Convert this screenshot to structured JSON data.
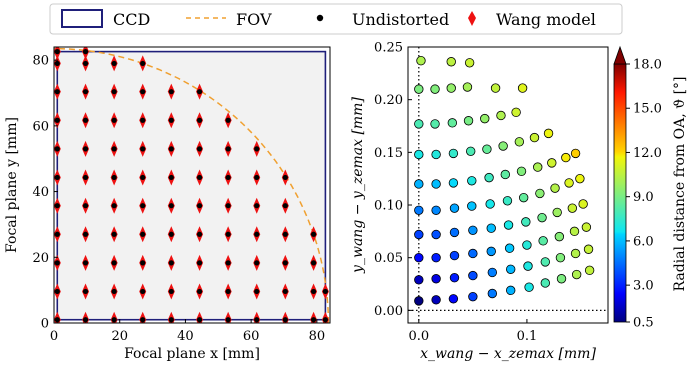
{
  "legend": {
    "entries": [
      {
        "label": "CCD",
        "symbol": "rect",
        "color": "#1f1f7a"
      },
      {
        "label": "FOV",
        "symbol": "dashed-line",
        "color": "#f0a030"
      },
      {
        "label": "Undistorted",
        "symbol": "dot",
        "color": "#000000"
      },
      {
        "label": "Wang model",
        "symbol": "diamond",
        "color": "#ee1111"
      }
    ]
  },
  "chart_data": [
    {
      "type": "scatter",
      "xlabel": "Focal plane x [mm]",
      "ylabel": "Focal plane y [mm]",
      "xlim": [
        0,
        84
      ],
      "ylim": [
        0,
        84
      ],
      "xticks": [
        "0",
        "20",
        "40",
        "60",
        "80"
      ],
      "yticks": [
        "0",
        "20",
        "40",
        "60",
        "80"
      ],
      "ccd_extent": [
        1,
        82.6
      ],
      "fov_radius": 83.5,
      "grid_x": [
        1,
        9.6,
        18.3,
        27,
        35.7,
        44.3,
        53,
        61.7,
        70.4,
        79,
        82.6
      ],
      "grid_y": [
        1,
        9.6,
        18.3,
        27,
        35.7,
        44.3,
        53,
        61.7,
        70.4,
        79,
        82.6
      ],
      "series": [
        {
          "name": "Undistorted",
          "color": "#000000",
          "marker": "dot"
        },
        {
          "name": "Wang model",
          "color": "#ee1111",
          "marker": "diamond"
        }
      ],
      "colors": {
        "ccd": "#1f1f7a",
        "fov": "#f0a030",
        "ccd_fill": "#f2f2f2"
      }
    },
    {
      "type": "scatter",
      "xlabel": "x_wang − x_zemax [mm]",
      "ylabel": "y_wang − y_zemax [mm]",
      "xlim": [
        -0.01,
        0.175
      ],
      "ylim": [
        -0.012,
        0.25
      ],
      "xticks": [
        {
          "v": 0.0,
          "l": "0.0"
        },
        {
          "v": 0.1,
          "l": "0.1"
        }
      ],
      "yticks": [
        {
          "v": 0.0,
          "l": "0.00"
        },
        {
          "v": 0.05,
          "l": "0.05"
        },
        {
          "v": 0.1,
          "l": "0.10"
        },
        {
          "v": 0.15,
          "l": "0.15"
        },
        {
          "v": 0.2,
          "l": "0.20"
        },
        {
          "v": 0.25,
          "l": "0.25"
        }
      ],
      "colorbar": {
        "label": "Radial distance from OA, ϑ [°]",
        "range": [
          0.5,
          18.0
        ],
        "ticks": [
          "0.5",
          "3.0",
          "6.0",
          "9.0",
          "12.0",
          "15.0",
          "18.0"
        ]
      },
      "points": [
        {
          "x": 0.0,
          "y": 0.009,
          "c": 0.5
        },
        {
          "x": 0.016,
          "y": 0.01,
          "c": 1.4
        },
        {
          "x": 0.032,
          "y": 0.011,
          "c": 2.5
        },
        {
          "x": 0.05,
          "y": 0.013,
          "c": 3.6
        },
        {
          "x": 0.068,
          "y": 0.016,
          "c": 4.7
        },
        {
          "x": 0.085,
          "y": 0.019,
          "c": 5.8
        },
        {
          "x": 0.102,
          "y": 0.022,
          "c": 6.9
        },
        {
          "x": 0.117,
          "y": 0.026,
          "c": 8.0
        },
        {
          "x": 0.132,
          "y": 0.03,
          "c": 9.1
        },
        {
          "x": 0.146,
          "y": 0.034,
          "c": 10.2
        },
        {
          "x": 0.158,
          "y": 0.038,
          "c": 10.6
        },
        {
          "x": 0.0,
          "y": 0.029,
          "c": 1.4
        },
        {
          "x": 0.016,
          "y": 0.03,
          "c": 2.0
        },
        {
          "x": 0.033,
          "y": 0.031,
          "c": 2.9
        },
        {
          "x": 0.05,
          "y": 0.033,
          "c": 3.8
        },
        {
          "x": 0.068,
          "y": 0.036,
          "c": 4.8
        },
        {
          "x": 0.085,
          "y": 0.039,
          "c": 5.9
        },
        {
          "x": 0.101,
          "y": 0.042,
          "c": 7.0
        },
        {
          "x": 0.117,
          "y": 0.046,
          "c": 8.1
        },
        {
          "x": 0.131,
          "y": 0.05,
          "c": 9.2
        },
        {
          "x": 0.145,
          "y": 0.054,
          "c": 10.3
        },
        {
          "x": 0.157,
          "y": 0.058,
          "c": 10.7
        },
        {
          "x": 0.0,
          "y": 0.05,
          "c": 2.5
        },
        {
          "x": 0.016,
          "y": 0.05,
          "c": 2.9
        },
        {
          "x": 0.033,
          "y": 0.052,
          "c": 3.6
        },
        {
          "x": 0.05,
          "y": 0.054,
          "c": 4.4
        },
        {
          "x": 0.067,
          "y": 0.056,
          "c": 5.3
        },
        {
          "x": 0.084,
          "y": 0.059,
          "c": 6.2
        },
        {
          "x": 0.1,
          "y": 0.062,
          "c": 7.2
        },
        {
          "x": 0.115,
          "y": 0.066,
          "c": 8.3
        },
        {
          "x": 0.13,
          "y": 0.07,
          "c": 9.3
        },
        {
          "x": 0.144,
          "y": 0.075,
          "c": 10.4
        },
        {
          "x": 0.155,
          "y": 0.079,
          "c": 10.8
        },
        {
          "x": 0.0,
          "y": 0.072,
          "c": 3.6
        },
        {
          "x": 0.016,
          "y": 0.072,
          "c": 3.9
        },
        {
          "x": 0.033,
          "y": 0.074,
          "c": 4.5
        },
        {
          "x": 0.05,
          "y": 0.076,
          "c": 5.2
        },
        {
          "x": 0.067,
          "y": 0.078,
          "c": 6.0
        },
        {
          "x": 0.083,
          "y": 0.081,
          "c": 6.9
        },
        {
          "x": 0.099,
          "y": 0.084,
          "c": 7.8
        },
        {
          "x": 0.114,
          "y": 0.088,
          "c": 8.8
        },
        {
          "x": 0.128,
          "y": 0.093,
          "c": 9.8
        },
        {
          "x": 0.142,
          "y": 0.097,
          "c": 10.8
        },
        {
          "x": 0.152,
          "y": 0.101,
          "c": 11.2
        },
        {
          "x": 0.0,
          "y": 0.095,
          "c": 4.7
        },
        {
          "x": 0.016,
          "y": 0.095,
          "c": 5.0
        },
        {
          "x": 0.033,
          "y": 0.097,
          "c": 5.5
        },
        {
          "x": 0.049,
          "y": 0.099,
          "c": 6.1
        },
        {
          "x": 0.066,
          "y": 0.101,
          "c": 6.8
        },
        {
          "x": 0.082,
          "y": 0.104,
          "c": 7.6
        },
        {
          "x": 0.097,
          "y": 0.107,
          "c": 8.5
        },
        {
          "x": 0.112,
          "y": 0.111,
          "c": 9.4
        },
        {
          "x": 0.126,
          "y": 0.116,
          "c": 10.3
        },
        {
          "x": 0.139,
          "y": 0.121,
          "c": 11.2
        },
        {
          "x": 0.149,
          "y": 0.125,
          "c": 11.6
        },
        {
          "x": 0.0,
          "y": 0.12,
          "c": 5.8
        },
        {
          "x": 0.016,
          "y": 0.12,
          "c": 6.0
        },
        {
          "x": 0.032,
          "y": 0.121,
          "c": 6.5
        },
        {
          "x": 0.049,
          "y": 0.123,
          "c": 7.0
        },
        {
          "x": 0.065,
          "y": 0.126,
          "c": 7.7
        },
        {
          "x": 0.08,
          "y": 0.129,
          "c": 8.4
        },
        {
          "x": 0.095,
          "y": 0.132,
          "c": 9.2
        },
        {
          "x": 0.11,
          "y": 0.136,
          "c": 10.1
        },
        {
          "x": 0.123,
          "y": 0.14,
          "c": 10.9
        },
        {
          "x": 0.136,
          "y": 0.145,
          "c": 11.8
        },
        {
          "x": 0.145,
          "y": 0.149,
          "c": 12.2
        },
        {
          "x": 0.0,
          "y": 0.148,
          "c": 6.9
        },
        {
          "x": 0.016,
          "y": 0.148,
          "c": 7.1
        },
        {
          "x": 0.032,
          "y": 0.149,
          "c": 7.5
        },
        {
          "x": 0.048,
          "y": 0.151,
          "c": 8.0
        },
        {
          "x": 0.063,
          "y": 0.153,
          "c": 8.6
        },
        {
          "x": 0.078,
          "y": 0.156,
          "c": 9.3
        },
        {
          "x": 0.093,
          "y": 0.16,
          "c": 10.0
        },
        {
          "x": 0.107,
          "y": 0.164,
          "c": 10.8
        },
        {
          "x": 0.12,
          "y": 0.168,
          "c": 11.6
        },
        {
          "x": 0.0,
          "y": 0.177,
          "c": 8.0
        },
        {
          "x": 0.015,
          "y": 0.177,
          "c": 8.2
        },
        {
          "x": 0.031,
          "y": 0.178,
          "c": 8.5
        },
        {
          "x": 0.046,
          "y": 0.18,
          "c": 9.0
        },
        {
          "x": 0.061,
          "y": 0.182,
          "c": 9.6
        },
        {
          "x": 0.076,
          "y": 0.185,
          "c": 10.2
        },
        {
          "x": 0.09,
          "y": 0.188,
          "c": 10.9
        },
        {
          "x": 0.0,
          "y": 0.21,
          "c": 9.1
        },
        {
          "x": 0.015,
          "y": 0.21,
          "c": 9.2
        },
        {
          "x": 0.03,
          "y": 0.211,
          "c": 9.6
        },
        {
          "x": 0.045,
          "y": 0.212,
          "c": 10.0
        },
        {
          "x": 0.071,
          "y": 0.211,
          "c": 10.6
        },
        {
          "x": 0.096,
          "y": 0.211,
          "c": 11.3
        },
        {
          "x": 0.002,
          "y": 0.237,
          "c": 10.2
        },
        {
          "x": 0.03,
          "y": 0.236,
          "c": 10.5
        },
        {
          "x": 0.047,
          "y": 0.235,
          "c": 10.8
        }
      ]
    }
  ]
}
